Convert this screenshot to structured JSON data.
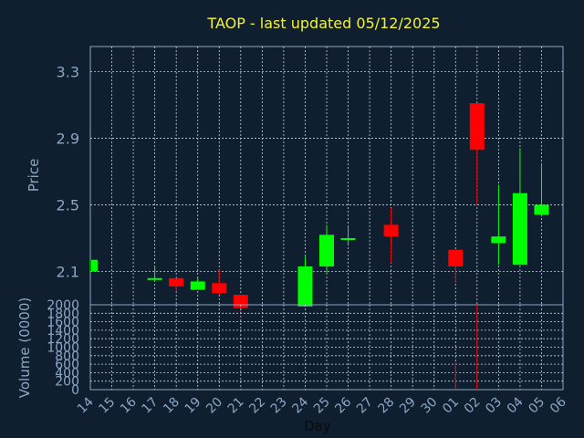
{
  "chart_data": {
    "type": "candlestick",
    "title": "TAOP - last updated 05/12/2025",
    "price_panel": {
      "ylabel": "Price",
      "ylim": [
        1.9,
        3.45
      ],
      "yticks": [
        "2.1",
        "2.5",
        "2.9",
        "3.3"
      ],
      "grid": true
    },
    "volume_panel": {
      "ylabel": "Volume (0000)",
      "ylim": [
        0,
        2000
      ],
      "yticks": [
        "2000",
        "1800",
        "1600",
        "1400",
        "1200",
        "1000",
        "800",
        "600",
        "400",
        "200",
        "0"
      ],
      "grid": true
    },
    "xlabel": "Day",
    "x_ticks": [
      "14",
      "15",
      "16",
      "17",
      "18",
      "19",
      "20",
      "21",
      "22",
      "23",
      "24",
      "25",
      "26",
      "27",
      "28",
      "29",
      "30",
      "01",
      "02",
      "03",
      "04",
      "05",
      "06"
    ],
    "colors": {
      "up": "#00ff00",
      "down": "#ff0000",
      "title": "#f2f236",
      "axis": "#8ca6c6",
      "background": "#0f1f2f"
    },
    "candles": [
      {
        "day": "14",
        "open": 2.1,
        "close": 2.17,
        "high": 2.17,
        "low": 2.1,
        "volume": 0
      },
      {
        "day": "17",
        "open": 2.05,
        "close": 2.06,
        "high": 2.13,
        "low": 2.04,
        "volume": 0
      },
      {
        "day": "18",
        "open": 2.06,
        "close": 2.01,
        "high": 2.06,
        "low": 1.98,
        "volume": 0
      },
      {
        "day": "19",
        "open": 1.99,
        "close": 2.04,
        "high": 2.06,
        "low": 1.99,
        "volume": 0
      },
      {
        "day": "20",
        "open": 2.03,
        "close": 1.97,
        "high": 2.11,
        "low": 1.96,
        "volume": 0
      },
      {
        "day": "21",
        "open": 1.96,
        "close": 1.88,
        "high": 1.96,
        "low": 1.85,
        "volume": 0
      },
      {
        "day": "24",
        "open": 1.89,
        "close": 2.13,
        "high": 2.19,
        "low": 1.89,
        "volume": 0
      },
      {
        "day": "25",
        "open": 2.13,
        "close": 2.32,
        "high": 2.38,
        "low": 2.09,
        "volume": 0
      },
      {
        "day": "26",
        "open": 2.29,
        "close": 2.3,
        "high": 2.37,
        "low": 2.26,
        "volume": 0
      },
      {
        "day": "28",
        "open": 2.38,
        "close": 2.31,
        "high": 2.48,
        "low": 2.15,
        "volume": 0
      },
      {
        "day": "01",
        "open": 2.23,
        "close": 2.13,
        "high": 2.23,
        "low": 2.03,
        "volume": 650
      },
      {
        "day": "02",
        "open": 3.11,
        "close": 2.83,
        "high": 3.11,
        "low": 2.5,
        "volume": 2000
      },
      {
        "day": "03",
        "open": 2.27,
        "close": 2.31,
        "high": 2.62,
        "low": 2.14,
        "volume": 0
      },
      {
        "day": "04",
        "open": 2.14,
        "close": 2.57,
        "high": 2.84,
        "low": 2.14,
        "volume": 0
      },
      {
        "day": "05",
        "open": 2.44,
        "close": 2.5,
        "high": 2.75,
        "low": 2.43,
        "volume": 0
      }
    ]
  }
}
